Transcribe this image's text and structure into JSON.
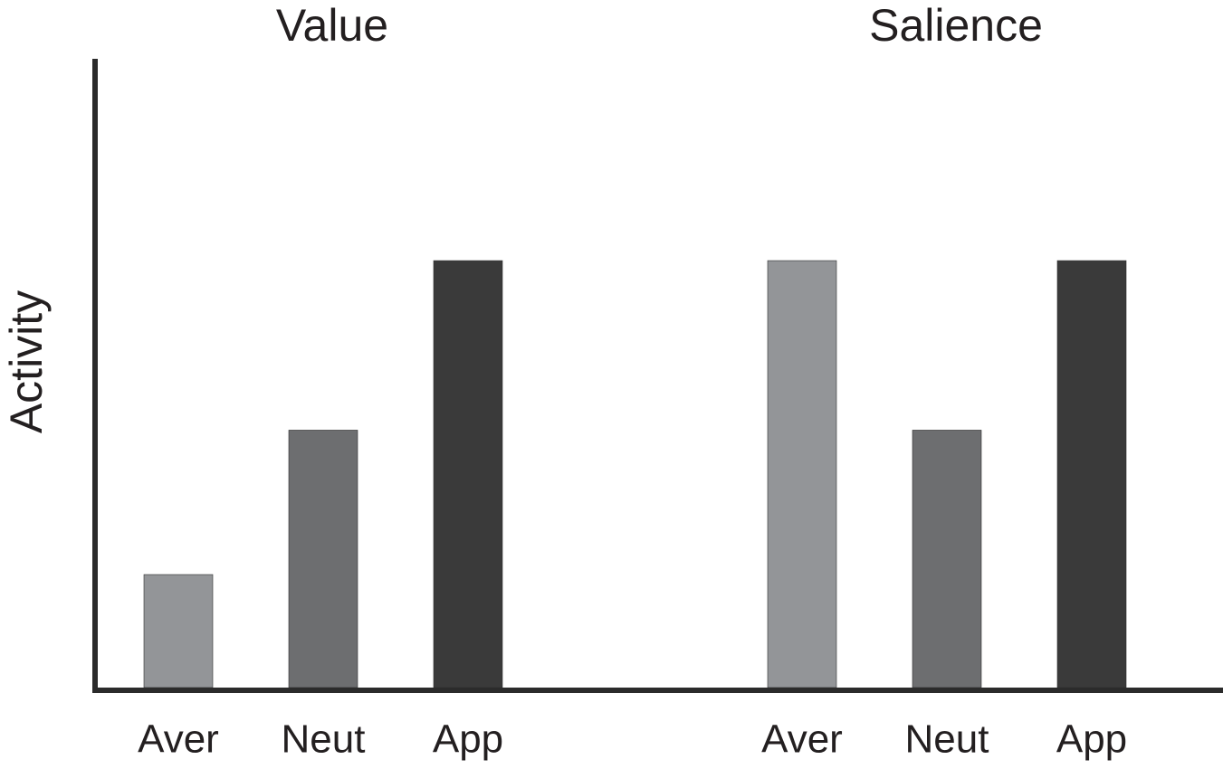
{
  "chart_data": [
    {
      "type": "bar",
      "title": "Value",
      "ylabel": "Activity",
      "categories": [
        "Aver",
        "Neut",
        "App"
      ],
      "values": [
        18,
        41,
        68
      ],
      "colors": [
        "#939598",
        "#6d6e70",
        "#3a3a3a"
      ],
      "ylim": [
        0,
        100
      ]
    },
    {
      "type": "bar",
      "title": "Salience",
      "categories": [
        "Aver",
        "Neut",
        "App"
      ],
      "values": [
        68,
        41,
        68
      ],
      "colors": [
        "#939598",
        "#6d6e70",
        "#3a3a3a"
      ],
      "ylim": [
        0,
        100
      ]
    }
  ]
}
